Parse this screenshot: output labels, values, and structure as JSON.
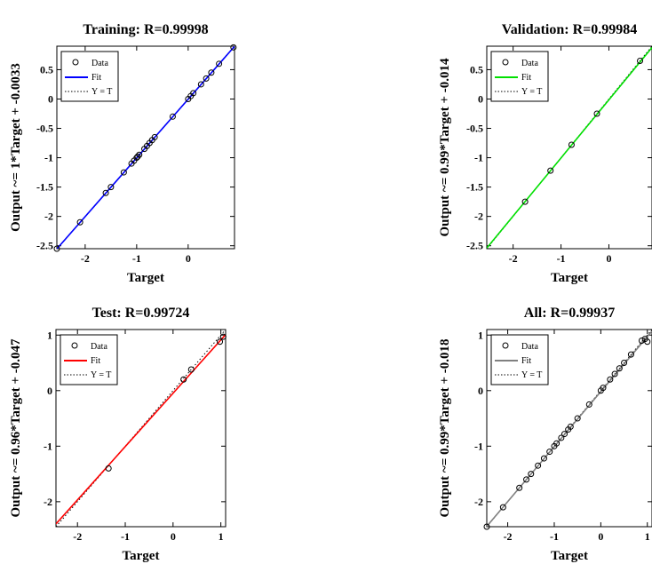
{
  "chart_data": [
    {
      "type": "scatter",
      "title": "Training: R=0.99998",
      "xlabel": "Target",
      "ylabel": "Output ~= 1*Target + -0.0033",
      "xlim": [
        -2.55,
        0.9
      ],
      "ylim": [
        -2.55,
        0.9
      ],
      "xticks": [
        -2,
        -1,
        0
      ],
      "yticks": [
        0.5,
        0,
        -0.5,
        -1,
        -1.5,
        -2,
        -2.5
      ],
      "xtick_labels": [
        "-2",
        "-1",
        "0"
      ],
      "ytick_labels": [
        "0.5",
        "0",
        "-0.5",
        "-1",
        "-1.5",
        "-2",
        "-2.5"
      ],
      "fit": {
        "slope": 1.0,
        "intercept": -0.0033,
        "color": "#0000ff"
      },
      "grid": false,
      "legend": {
        "position": "top-left",
        "entries": [
          "Data",
          "Fit",
          "Y = T"
        ]
      },
      "x": [
        -2.55,
        -2.1,
        -1.6,
        -1.5,
        -1.25,
        -1.1,
        -1.05,
        -1.0,
        -0.98,
        -0.95,
        -0.85,
        -0.8,
        -0.75,
        -0.7,
        -0.65,
        -0.3,
        0.0,
        0.05,
        0.1,
        0.25,
        0.35,
        0.45,
        0.6,
        0.88
      ],
      "y": [
        -2.55,
        -2.1,
        -1.6,
        -1.5,
        -1.25,
        -1.1,
        -1.05,
        -1.0,
        -0.98,
        -0.95,
        -0.85,
        -0.8,
        -0.75,
        -0.7,
        -0.65,
        -0.3,
        0.0,
        0.05,
        0.1,
        0.25,
        0.35,
        0.45,
        0.6,
        0.88
      ]
    },
    {
      "type": "scatter",
      "title": "Validation: R=0.99984",
      "xlabel": "Target",
      "ylabel": "Output ~= 0.99*Target + -0.014",
      "xlim": [
        -2.55,
        0.9
      ],
      "ylim": [
        -2.55,
        0.9
      ],
      "xticks": [
        -2,
        -1,
        0
      ],
      "yticks": [
        0.5,
        0,
        -0.5,
        -1,
        -1.5,
        -2,
        -2.5
      ],
      "xtick_labels": [
        "-2",
        "-1",
        "0"
      ],
      "ytick_labels": [
        "0.5",
        "0",
        "-0.5",
        "-1",
        "-1.5",
        "-2",
        "-2.5"
      ],
      "fit": {
        "slope": 0.99,
        "intercept": -0.014,
        "color": "#00e000"
      },
      "grid": false,
      "legend": {
        "position": "top-left",
        "entries": [
          "Data",
          "Fit",
          "Y = T"
        ]
      },
      "x": [
        -1.75,
        -1.22,
        -0.78,
        -0.25,
        0.65
      ],
      "y": [
        -1.75,
        -1.22,
        -0.78,
        -0.25,
        0.65
      ]
    },
    {
      "type": "scatter",
      "title": "Test: R=0.99724",
      "xlabel": "Target",
      "ylabel": "Output ~= 0.96*Target + -0.047",
      "xlim": [
        -2.45,
        1.1
      ],
      "ylim": [
        -2.45,
        1.1
      ],
      "xticks": [
        -2,
        -1,
        0,
        1
      ],
      "yticks": [
        1,
        0,
        -1,
        -2
      ],
      "xtick_labels": [
        "-2",
        "-1",
        "0",
        "1"
      ],
      "ytick_labels": [
        "1",
        "0",
        "-1",
        "-2"
      ],
      "fit": {
        "slope": 0.96,
        "intercept": -0.047,
        "color": "#ff0000"
      },
      "grid": false,
      "legend": {
        "position": "top-left",
        "entries": [
          "Data",
          "Fit",
          "Y = T"
        ]
      },
      "x": [
        -1.35,
        0.22,
        0.38,
        0.98,
        1.05
      ],
      "y": [
        -1.4,
        0.2,
        0.38,
        0.88,
        0.97
      ]
    },
    {
      "type": "scatter",
      "title": "All: R=0.99937",
      "xlabel": "Target",
      "ylabel": "Output ~= 0.99*Target + -0.018",
      "xlim": [
        -2.45,
        1.1
      ],
      "ylim": [
        -2.45,
        1.1
      ],
      "xticks": [
        -2,
        -1,
        0,
        1
      ],
      "yticks": [
        1,
        0,
        -1,
        -2
      ],
      "xtick_labels": [
        "-2",
        "-1",
        "0",
        "1"
      ],
      "ytick_labels": [
        "1",
        "0",
        "-1",
        "-2"
      ],
      "fit": {
        "slope": 0.99,
        "intercept": -0.018,
        "color": "#808080"
      },
      "grid": false,
      "legend": {
        "position": "top-left",
        "entries": [
          "Data",
          "Fit",
          "Y = T"
        ]
      },
      "x": [
        -2.45,
        -2.1,
        -1.75,
        -1.6,
        -1.5,
        -1.35,
        -1.22,
        -1.1,
        -1.0,
        -0.95,
        -0.85,
        -0.78,
        -0.7,
        -0.65,
        -0.5,
        -0.25,
        0.0,
        0.05,
        0.2,
        0.3,
        0.4,
        0.5,
        0.65,
        0.88,
        0.95,
        1.0
      ],
      "y": [
        -2.45,
        -2.1,
        -1.75,
        -1.6,
        -1.5,
        -1.35,
        -1.22,
        -1.1,
        -1.0,
        -0.95,
        -0.85,
        -0.78,
        -0.7,
        -0.65,
        -0.5,
        -0.25,
        0.0,
        0.05,
        0.2,
        0.3,
        0.4,
        0.5,
        0.65,
        0.9,
        0.93,
        0.88
      ]
    }
  ]
}
